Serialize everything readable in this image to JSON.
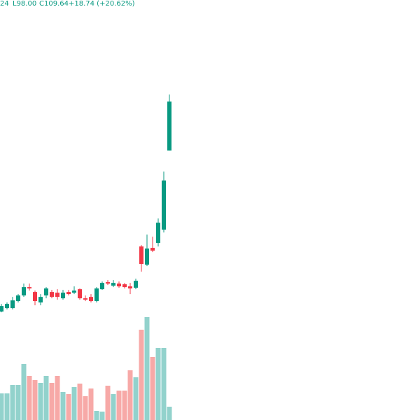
{
  "chart_data": {
    "type": "candlestick",
    "legend_text": {
      "fragment": "24",
      "low": "L98.00",
      "close": "C109.64",
      "change": "+18.74 (+20.62%)"
    },
    "up_color": "#089981",
    "down_color": "#f23645",
    "volume_up_color": "#92d2cc",
    "volume_down_color": "#f7a9a7",
    "ylim": [
      34,
      133.76
    ],
    "volume_lim": [
      0,
      600
    ],
    "open": [
      59.75,
      60.58,
      60.58,
      62.25,
      63.58,
      65.57,
      64.41,
      61.91,
      63.58,
      64.41,
      64.24,
      62.91,
      64.41,
      64.24,
      65.07,
      62.91,
      63.24,
      62.25,
      65.07,
      66.74,
      65.9,
      66.4,
      66.24,
      65.74,
      65.41,
      75.22,
      70.89,
      74.89,
      76.05,
      79.21,
      98.0
    ],
    "high": [
      61.58,
      61.91,
      63.24,
      63.91,
      66.4,
      66.4,
      64.74,
      63.91,
      65.57,
      64.91,
      65.07,
      64.91,
      64.91,
      65.74,
      65.24,
      63.58,
      63.91,
      65.57,
      66.9,
      67.24,
      67.24,
      66.9,
      66.57,
      66.57,
      67.57,
      75.55,
      78.05,
      77.55,
      81.87,
      93.01,
      111.31
    ],
    "low": [
      59.58,
      60.25,
      60.25,
      61.91,
      63.24,
      64.74,
      61.25,
      61.25,
      62.91,
      62.91,
      62.58,
      62.58,
      63.58,
      63.91,
      62.58,
      62.25,
      61.91,
      61.91,
      64.91,
      66.07,
      65.57,
      65.41,
      65.24,
      63.91,
      65.07,
      69.23,
      70.56,
      73.89,
      75.22,
      78.54,
      98.0
    ],
    "close": [
      61.08,
      61.58,
      62.41,
      63.58,
      65.57,
      65.24,
      62.25,
      63.24,
      65.24,
      63.24,
      63.24,
      64.24,
      63.91,
      64.74,
      62.91,
      62.58,
      62.25,
      65.24,
      66.57,
      66.4,
      66.57,
      65.74,
      65.57,
      65.24,
      67.07,
      71.06,
      74.72,
      74.22,
      80.87,
      90.9,
      109.64
    ],
    "volume": [
      38,
      38,
      50,
      50,
      80,
      63,
      57,
      53,
      63,
      53,
      63,
      40,
      37,
      47,
      52,
      34,
      45,
      13,
      12,
      49,
      37,
      42,
      42,
      71,
      61,
      129,
      147,
      90,
      103,
      103,
      19
    ]
  }
}
